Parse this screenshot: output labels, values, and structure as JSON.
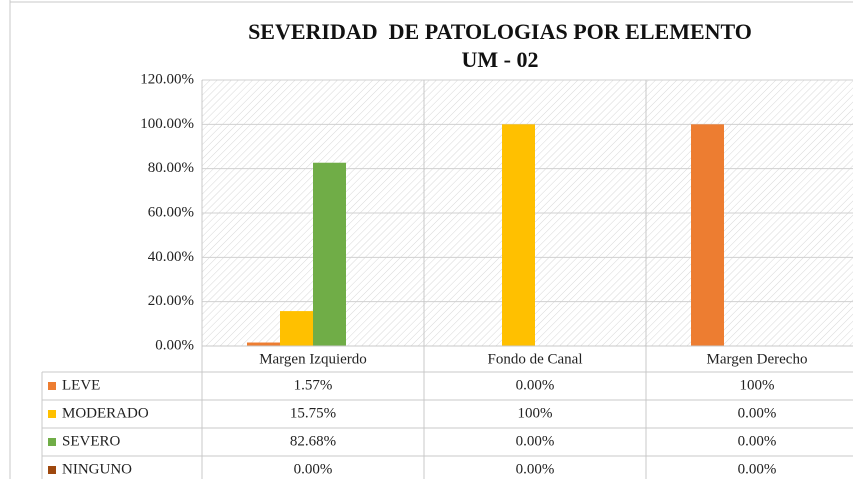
{
  "chart_data": {
    "type": "bar",
    "title": "SEVERIDAD  DE PATOLOGIAS POR ELEMENTO UM - 02",
    "categories": [
      "Margen Izquierdo",
      "Fondo de Canal",
      "Margen Derecho"
    ],
    "series": [
      {
        "name": "LEVE",
        "color": "#ed7d31",
        "values": [
          1.57,
          0,
          100
        ],
        "value_labels": [
          "1.57%",
          "0.00%",
          "100%"
        ]
      },
      {
        "name": "MODERADO",
        "color": "#ffc000",
        "values": [
          15.75,
          100,
          0
        ],
        "value_labels": [
          "15.75%",
          "100%",
          "0.00%"
        ]
      },
      {
        "name": "SEVERO",
        "color": "#70ad47",
        "values": [
          82.68,
          0,
          0
        ],
        "value_labels": [
          "82.68%",
          "0.00%",
          "0.00%"
        ]
      },
      {
        "name": "NINGUNO",
        "color": "#9e480e",
        "values": [
          0,
          0,
          0
        ],
        "value_labels": [
          "0.00%",
          "0.00%",
          "0.00%"
        ]
      }
    ],
    "ylim": [
      0,
      120
    ],
    "yticks": [
      {
        "value": 0,
        "label": "0.00%"
      },
      {
        "value": 20,
        "label": "20.00%"
      },
      {
        "value": 40,
        "label": "40.00%"
      },
      {
        "value": 60,
        "label": "60.00%"
      },
      {
        "value": 80,
        "label": "80.00%"
      },
      {
        "value": 100,
        "label": "100.00%"
      },
      {
        "value": 120,
        "label": "120.00%"
      }
    ],
    "grid": true
  }
}
